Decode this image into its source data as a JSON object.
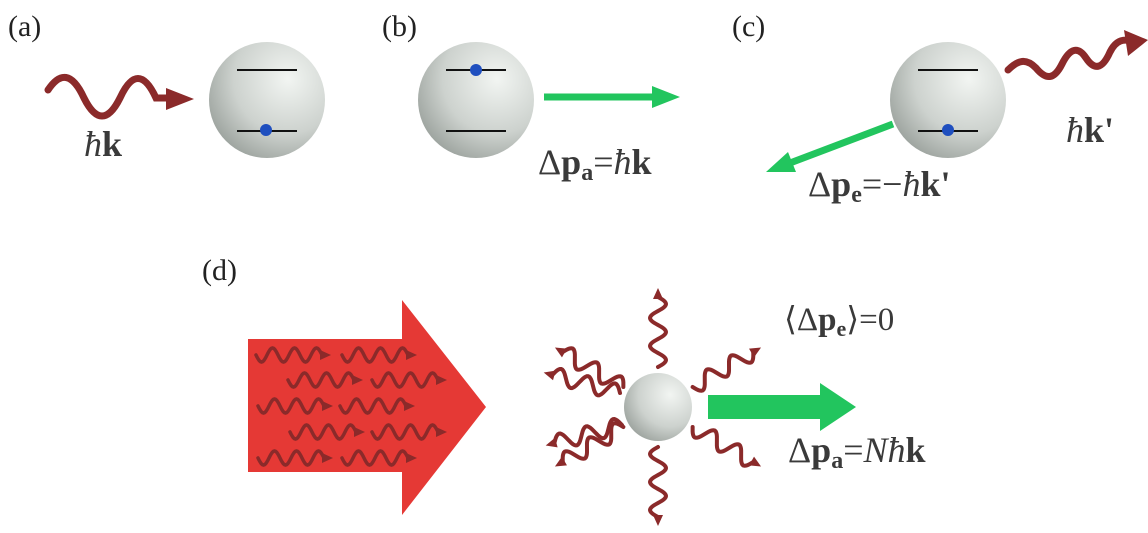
{
  "panels": {
    "a": {
      "label": "(a)",
      "photon_label": {
        "hbar": "ħ",
        "k": "k"
      }
    },
    "b": {
      "label": "(b)",
      "momentum": {
        "delta": "Δ",
        "p": "p",
        "sub": "a",
        "eq": "=",
        "hbar": "ħ",
        "k": "k"
      }
    },
    "c": {
      "label": "(c)",
      "photon_label": {
        "hbar": "ħ",
        "k": "k",
        "prime": "'"
      },
      "momentum": {
        "delta": "Δ",
        "p": "p",
        "sub": "e",
        "eq": "=−",
        "hbar": "ħ",
        "k": "k",
        "prime": "'"
      }
    },
    "d": {
      "label": "(d)",
      "average": {
        "open": "⟨Δ",
        "p": "p",
        "sub": "e",
        "close": "⟩=0"
      },
      "momentum": {
        "delta": "Δ",
        "p": "p",
        "sub": "a",
        "eq": "=",
        "n": "N",
        "hbar": "ħ",
        "k": "k"
      }
    }
  },
  "colors": {
    "photon": "#8b2a2a",
    "kick_arrow": "#22c55e",
    "beam": "#e53935",
    "electron": "#1f4fbf",
    "atom_light": "#eef1ee",
    "atom_dark": "#9aa19c"
  }
}
